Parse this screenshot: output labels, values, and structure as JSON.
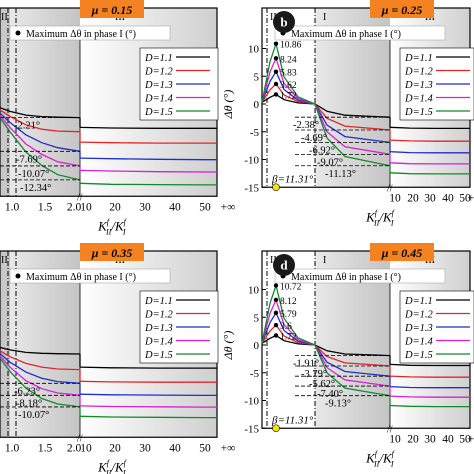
{
  "colors": {
    "D1.1": "#000000",
    "D1.2": "#e0262a",
    "D1.3": "#1f2fc8",
    "D1.4": "#d61fd6",
    "D1.5": "#128a2a",
    "mu_badge_bg": "#f58220",
    "letter_badge_bg": "#1a1a1a",
    "zone_gray": "#d9d9d9"
  },
  "legend": {
    "title": "Maximum Δθ in phase I (°)",
    "entries": [
      "D=1.1",
      "D=1.2",
      "D=1.3",
      "D=1.4",
      "D=1.5"
    ]
  },
  "axes_text": {
    "ylabel": "Δθ (°)",
    "xlabel": "K",
    "xlabel_sup1": "f",
    "xlabel_sub1": "II",
    "xlabel_slash": "/",
    "xlabel_k2": "K",
    "xlabel_sup2": "f",
    "xlabel_sub2": "I",
    "beta_label": "β=11.31°",
    "zone_labels": [
      "II",
      "I",
      "III"
    ]
  },
  "chart_data": [
    {
      "panel": "a",
      "type": "line",
      "mu_label": "μ = 0.15",
      "xticks": [
        "1.0",
        "1.5",
        "2.0",
        "10",
        "20",
        "30",
        "40",
        "50",
        "+∞"
      ],
      "yticks": [],
      "ylim": [
        -15,
        10
      ],
      "series": [
        {
          "name": "D=1.1",
          "left": [
            [
              0,
              0
            ],
            [
              1.0,
              -1.2
            ],
            [
              1.25,
              -1.8
            ],
            [
              1.5,
              -2.05
            ],
            [
              1.75,
              -2.15
            ],
            [
              2.1,
              -2.21
            ]
          ],
          "right": [
            [
              10,
              -3.8
            ],
            [
              20,
              -3.9
            ],
            [
              35,
              -3.95
            ],
            [
              50,
              -3.95
            ]
          ]
        },
        {
          "name": "D=1.2",
          "left": [
            [
              0,
              0
            ],
            [
              1.0,
              -2.0
            ],
            [
              1.25,
              -3.4
            ],
            [
              1.5,
              -4.1
            ],
            [
              1.75,
              -4.4
            ],
            [
              2.1,
              -4.5
            ]
          ],
          "right": [
            [
              10,
              -6.2
            ],
            [
              20,
              -6.3
            ],
            [
              35,
              -6.35
            ],
            [
              50,
              -6.35
            ]
          ]
        },
        {
          "name": "D=1.3",
          "left": [
            [
              0,
              0
            ],
            [
              1.0,
              -3.0
            ],
            [
              1.25,
              -5.0
            ],
            [
              1.5,
              -6.3
            ],
            [
              1.75,
              -7.1
            ],
            [
              2.1,
              -7.69
            ]
          ],
          "right": [
            [
              10,
              -8.8
            ],
            [
              20,
              -8.9
            ],
            [
              35,
              -9.0
            ],
            [
              50,
              -9.05
            ]
          ]
        },
        {
          "name": "D=1.4",
          "left": [
            [
              0,
              0
            ],
            [
              1.0,
              -3.8
            ],
            [
              1.25,
              -6.5
            ],
            [
              1.5,
              -8.2
            ],
            [
              1.75,
              -9.4
            ],
            [
              2.1,
              -10.07
            ]
          ],
          "right": [
            [
              10,
              -10.8
            ],
            [
              20,
              -10.9
            ],
            [
              35,
              -11.0
            ],
            [
              50,
              -11.05
            ]
          ]
        },
        {
          "name": "D=1.5",
          "left": [
            [
              0,
              0
            ],
            [
              1.0,
              -4.5
            ],
            [
              1.25,
              -7.8
            ],
            [
              1.5,
              -10.0
            ],
            [
              1.75,
              -11.5
            ],
            [
              2.1,
              -12.34
            ]
          ],
          "right": [
            [
              10,
              -12.9
            ],
            [
              20,
              -13.05
            ],
            [
              35,
              -13.1
            ],
            [
              50,
              -13.15
            ]
          ]
        }
      ],
      "annotations": [
        {
          "text": "-2.21°",
          "value": -2.21
        },
        {
          "text": "-7.69°",
          "value": -7.69
        },
        {
          "text": "-10.07°",
          "value": -10.07
        },
        {
          "text": "-12.34°",
          "value": -12.34
        }
      ]
    },
    {
      "panel": "b",
      "type": "line",
      "mu_label": "μ = 0.25",
      "xticks": [
        "",
        "10",
        "20",
        "30",
        "40",
        "50",
        "+∞"
      ],
      "yticks": [
        "10",
        "5",
        "0",
        "-5",
        "-10",
        "-15"
      ],
      "ylim": [
        -15,
        12
      ],
      "peak_labels": [
        "10.86",
        "8.24",
        "5.83",
        "3.62",
        "1.72"
      ],
      "series": [
        {
          "name": "D=1.1",
          "peak": 1.72,
          "trough": -2.38,
          "right_start": -4.2,
          "right_end": -4.4
        },
        {
          "name": "D=1.2",
          "peak": 3.62,
          "trough": -4.69,
          "right_start": -6.5,
          "right_end": -6.7
        },
        {
          "name": "D=1.3",
          "peak": 5.83,
          "trough": -6.92,
          "right_start": -8.6,
          "right_end": -8.8
        },
        {
          "name": "D=1.4",
          "peak": 8.24,
          "trough": -9.07,
          "right_start": -10.6,
          "right_end": -10.8
        },
        {
          "name": "D=1.5",
          "peak": 10.86,
          "trough": -11.13,
          "right_start": -12.4,
          "right_end": -12.6
        }
      ],
      "annotations": [
        {
          "text": "-2.38°",
          "value": -2.38
        },
        {
          "text": "-4.69°",
          "value": -4.69
        },
        {
          "text": "-6.92°",
          "value": -6.92
        },
        {
          "text": "-9.07°",
          "value": -9.07
        },
        {
          "text": "-11.13°",
          "value": -11.13
        }
      ]
    },
    {
      "panel": "c",
      "type": "line",
      "mu_label": "μ = 0.35",
      "xticks": [
        "1.0",
        "1.5",
        "2.0",
        "10",
        "20",
        "30",
        "40",
        "50",
        "+∞"
      ],
      "yticks": [],
      "ylim": [
        -15,
        10
      ],
      "series": [
        {
          "name": "D=1.1",
          "left": [
            [
              0,
              0
            ],
            [
              1.0,
              -0.8
            ],
            [
              1.25,
              -1.2
            ],
            [
              1.5,
              -1.35
            ],
            [
              1.75,
              -1.42
            ],
            [
              2.1,
              -1.46
            ]
          ],
          "right": [
            [
              10,
              -3.6
            ],
            [
              20,
              -3.7
            ],
            [
              35,
              -3.75
            ],
            [
              50,
              -3.75
            ]
          ]
        },
        {
          "name": "D=1.2",
          "left": [
            [
              0,
              0
            ],
            [
              1.0,
              -1.9
            ],
            [
              1.25,
              -3.0
            ],
            [
              1.5,
              -3.6
            ],
            [
              1.75,
              -3.9
            ],
            [
              2.1,
              -4.0
            ]
          ],
          "right": [
            [
              10,
              -5.9
            ],
            [
              20,
              -6.0
            ],
            [
              35,
              -6.05
            ],
            [
              50,
              -6.05
            ]
          ]
        },
        {
          "name": "D=1.3",
          "left": [
            [
              0,
              0
            ],
            [
              1.0,
              -2.8
            ],
            [
              1.25,
              -4.4
            ],
            [
              1.5,
              -5.4
            ],
            [
              1.75,
              -5.95
            ],
            [
              2.1,
              -6.23
            ]
          ],
          "right": [
            [
              10,
              -8.0
            ],
            [
              20,
              -8.1
            ],
            [
              35,
              -8.15
            ],
            [
              50,
              -8.2
            ]
          ]
        },
        {
          "name": "D=1.4",
          "left": [
            [
              0,
              0
            ],
            [
              1.0,
              -3.6
            ],
            [
              1.25,
              -5.8
            ],
            [
              1.5,
              -7.1
            ],
            [
              1.75,
              -7.8
            ],
            [
              2.1,
              -8.18
            ]
          ],
          "right": [
            [
              10,
              -9.9
            ],
            [
              20,
              -10.0
            ],
            [
              35,
              -10.05
            ],
            [
              50,
              -10.1
            ]
          ]
        },
        {
          "name": "D=1.5",
          "left": [
            [
              0,
              0
            ],
            [
              1.0,
              -4.3
            ],
            [
              1.25,
              -7.0
            ],
            [
              1.5,
              -8.7
            ],
            [
              1.75,
              -9.6
            ],
            [
              2.1,
              -10.07
            ]
          ],
          "right": [
            [
              10,
              -11.6
            ],
            [
              20,
              -11.7
            ],
            [
              35,
              -11.75
            ],
            [
              50,
              -11.8
            ]
          ]
        }
      ],
      "annotations": [
        {
          "text": "-6.23°",
          "value": -6.23
        },
        {
          "text": "-8.18°",
          "value": -8.18
        },
        {
          "text": "-10.07°",
          "value": -10.07
        }
      ]
    },
    {
      "panel": "d",
      "type": "line",
      "mu_label": "μ = 0.45",
      "xticks": [
        "",
        "10",
        "20",
        "30",
        "40",
        "50",
        "+∞"
      ],
      "yticks": [
        "10",
        "5",
        "0",
        "-5",
        "-10",
        "-15"
      ],
      "ylim": [
        -15,
        12
      ],
      "peak_labels": [
        "10.72",
        "8.12",
        "5.79",
        "3.6",
        "1.72"
      ],
      "series": [
        {
          "name": "D=1.1",
          "peak": 1.72,
          "trough": -1.91,
          "right_start": -3.5,
          "right_end": -3.7
        },
        {
          "name": "D=1.2",
          "peak": 3.6,
          "trough": -3.79,
          "right_start": -5.6,
          "right_end": -5.8
        },
        {
          "name": "D=1.3",
          "peak": 5.79,
          "trough": -5.62,
          "right_start": -7.5,
          "right_end": -7.7
        },
        {
          "name": "D=1.4",
          "peak": 8.12,
          "trough": -7.4,
          "right_start": -9.2,
          "right_end": -9.4
        },
        {
          "name": "D=1.5",
          "peak": 10.72,
          "trough": -9.13,
          "right_start": -10.9,
          "right_end": -11.1
        }
      ],
      "annotations": [
        {
          "text": "-1.91°",
          "value": -1.91
        },
        {
          "text": "-3.79°",
          "value": -3.79
        },
        {
          "text": "-5.62°",
          "value": -5.62
        },
        {
          "text": "-7.40°",
          "value": -7.4
        },
        {
          "text": "-9.13°",
          "value": -9.13
        }
      ]
    }
  ]
}
